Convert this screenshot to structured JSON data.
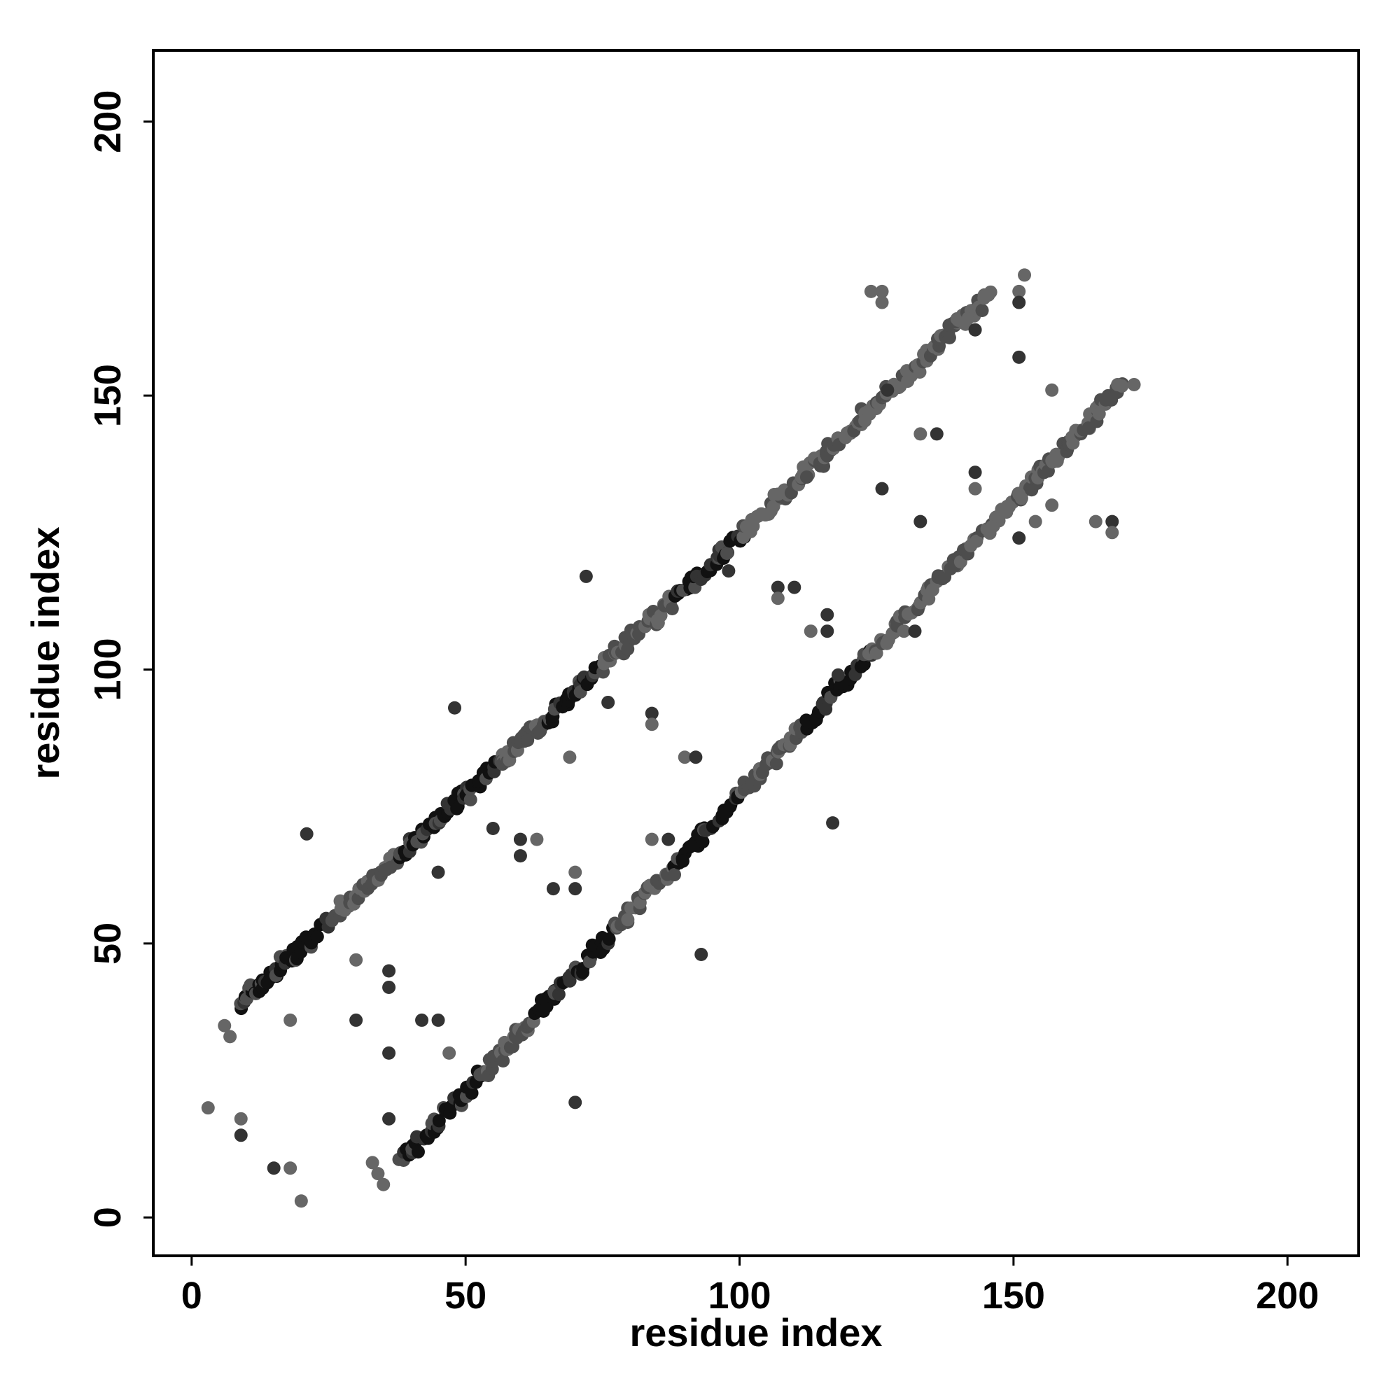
{
  "chart_data": {
    "type": "scatter",
    "title": "",
    "xlabel": "residue index",
    "ylabel": "residue index",
    "xlim": [
      -7,
      213
    ],
    "ylim": [
      -7,
      213
    ],
    "x_ticks": [
      0,
      50,
      100,
      150,
      200
    ],
    "y_ticks": [
      0,
      50,
      100,
      150,
      200
    ],
    "grid": false,
    "legend": "none",
    "colors": {
      "darkest": "#111111",
      "dark": "#333333",
      "mid": "#4d4d4d",
      "light": "#666666"
    },
    "bands": [
      {
        "from": [
          9,
          39
        ],
        "to": [
          101,
          125
        ],
        "shade": "mixed",
        "segments": [
          {
            "x": [
              9,
              25
            ],
            "shade": "darkest"
          },
          {
            "x": [
              38,
              56
            ],
            "shade": "darkest"
          },
          {
            "x": [
              65,
              75
            ],
            "shade": "darkest"
          },
          {
            "x": [
              88,
              101
            ],
            "shade": "darkest"
          }
        ]
      },
      {
        "from": [
          101,
          125
        ],
        "to": [
          146,
          169
        ],
        "shade": "light"
      },
      {
        "from": [
          38,
          10
        ],
        "to": [
          124,
          103
        ],
        "shade": "mixed",
        "segments": [
          {
            "x": [
              39,
              53
            ],
            "shade": "darkest"
          },
          {
            "x": [
              63,
              77
            ],
            "shade": "darkest"
          },
          {
            "x": [
              88,
              100
            ],
            "shade": "darkest"
          },
          {
            "x": [
              112,
              124
            ],
            "shade": "darkest"
          }
        ]
      },
      {
        "from": [
          124,
          103
        ],
        "to": [
          170,
          152
        ],
        "shade": "light"
      }
    ],
    "outliers": [
      [
        3,
        20,
        "light"
      ],
      [
        6,
        35,
        "light"
      ],
      [
        7,
        33,
        "light"
      ],
      [
        9,
        18,
        "light"
      ],
      [
        9,
        15,
        "dark"
      ],
      [
        15,
        9,
        "dark"
      ],
      [
        18,
        9,
        "light"
      ],
      [
        18,
        36,
        "light"
      ],
      [
        20,
        3,
        "light"
      ],
      [
        21,
        70,
        "dark"
      ],
      [
        30,
        47,
        "light"
      ],
      [
        30,
        36,
        "dark"
      ],
      [
        33,
        10,
        "light"
      ],
      [
        34,
        8,
        "light"
      ],
      [
        35,
        6,
        "light"
      ],
      [
        36,
        45,
        "dark"
      ],
      [
        36,
        42,
        "dark"
      ],
      [
        36,
        30,
        "dark"
      ],
      [
        36,
        18,
        "dark"
      ],
      [
        42,
        36,
        "dark"
      ],
      [
        45,
        36,
        "dark"
      ],
      [
        45,
        63,
        "dark"
      ],
      [
        47,
        30,
        "light"
      ],
      [
        48,
        93,
        "dark"
      ],
      [
        55,
        71,
        "dark"
      ],
      [
        60,
        69,
        "dark"
      ],
      [
        60,
        66,
        "dark"
      ],
      [
        63,
        69,
        "light"
      ],
      [
        66,
        60,
        "dark"
      ],
      [
        70,
        63,
        "light"
      ],
      [
        70,
        60,
        "dark"
      ],
      [
        70,
        21,
        "dark"
      ],
      [
        69,
        84,
        "light"
      ],
      [
        72,
        117,
        "dark"
      ],
      [
        76,
        94,
        "dark"
      ],
      [
        84,
        92,
        "dark"
      ],
      [
        84,
        90,
        "light"
      ],
      [
        84,
        69,
        "light"
      ],
      [
        87,
        69,
        "dark"
      ],
      [
        90,
        84,
        "light"
      ],
      [
        92,
        84,
        "dark"
      ],
      [
        93,
        48,
        "dark"
      ],
      [
        98,
        118,
        "dark"
      ],
      [
        107,
        132,
        "light"
      ],
      [
        107,
        115,
        "dark"
      ],
      [
        107,
        113,
        "light"
      ],
      [
        110,
        115,
        "dark"
      ],
      [
        113,
        107,
        "light"
      ],
      [
        116,
        110,
        "dark"
      ],
      [
        116,
        107,
        "dark"
      ],
      [
        117,
        72,
        "dark"
      ],
      [
        118,
        99,
        "dark"
      ],
      [
        124,
        169,
        "light"
      ],
      [
        126,
        169,
        "light"
      ],
      [
        126,
        167,
        "light"
      ],
      [
        126,
        133,
        "dark"
      ],
      [
        127,
        151,
        "dark"
      ],
      [
        130,
        107,
        "light"
      ],
      [
        132,
        107,
        "dark"
      ],
      [
        133,
        143,
        "light"
      ],
      [
        133,
        127,
        "dark"
      ],
      [
        136,
        143,
        "dark"
      ],
      [
        143,
        136,
        "dark"
      ],
      [
        143,
        133,
        "light"
      ],
      [
        143,
        162,
        "dark"
      ],
      [
        146,
        126,
        "light"
      ],
      [
        151,
        169,
        "light"
      ],
      [
        151,
        167,
        "dark"
      ],
      [
        151,
        157,
        "dark"
      ],
      [
        151,
        132,
        "light"
      ],
      [
        151,
        124,
        "dark"
      ],
      [
        152,
        172,
        "light"
      ],
      [
        154,
        127,
        "light"
      ],
      [
        157,
        151,
        "light"
      ],
      [
        157,
        130,
        "light"
      ],
      [
        165,
        127,
        "light"
      ],
      [
        168,
        127,
        "dark"
      ],
      [
        168,
        125,
        "light"
      ],
      [
        169,
        152,
        "light"
      ],
      [
        172,
        152,
        "light"
      ]
    ]
  }
}
